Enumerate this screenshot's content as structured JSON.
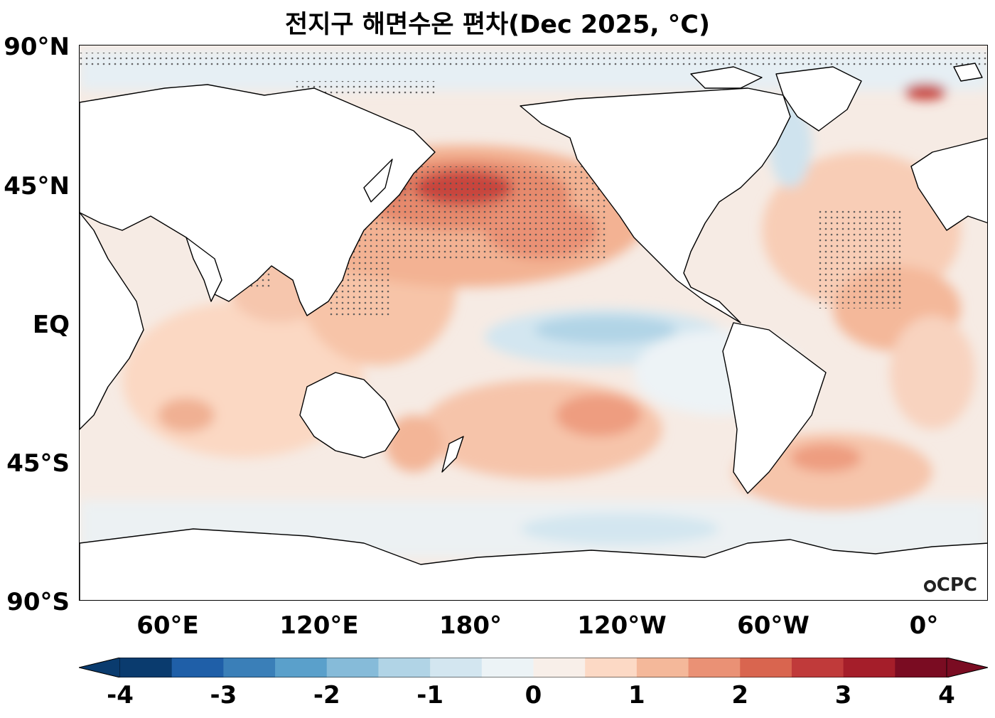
{
  "title": "전지구 해면수온 편차(Dec 2025, °C)",
  "credit": "CPC",
  "latitude_labels": [
    "90°N",
    "45°N",
    "EQ",
    "45°S",
    "90°S"
  ],
  "longitude_labels": [
    "60°E",
    "120°E",
    "180°",
    "120°W",
    "60°W",
    "0°"
  ],
  "colorbar": {
    "ticks": [
      "-4",
      "-3",
      "-2",
      "-1",
      "0",
      "1",
      "2",
      "3",
      "4"
    ],
    "colors": [
      "#0a3b6e",
      "#1f5fa8",
      "#3a7fb8",
      "#5aa0cb",
      "#86bbd9",
      "#b1d4e6",
      "#d3e6f0",
      "#ecf3f6",
      "#f8efe9",
      "#fcd9c5",
      "#f4b89a",
      "#ea9175",
      "#d9654f",
      "#c03a3a",
      "#a51e2a",
      "#7a0c22"
    ],
    "extend": "both"
  },
  "map": {
    "land_color": "#ffffff",
    "ocean_base_color": "#f6ebe4",
    "projection": "PlateCarree, central longitude 180°",
    "stippling": "statistically significant regions marked with dots"
  }
}
